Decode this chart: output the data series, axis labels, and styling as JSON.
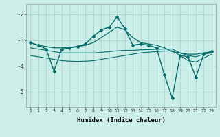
{
  "title": "",
  "xlabel": "Humidex (Indice chaleur)",
  "ylabel": "",
  "bg_color": "#cceee8",
  "grid_color": "#aad4cc",
  "line_color": "#006b6b",
  "xlim": [
    -0.5,
    23.5
  ],
  "ylim": [
    -5.6,
    -1.6
  ],
  "yticks": [
    -5,
    -4,
    -3,
    -2
  ],
  "xticks": [
    0,
    1,
    2,
    3,
    4,
    5,
    6,
    7,
    8,
    9,
    10,
    11,
    12,
    13,
    14,
    15,
    16,
    17,
    18,
    19,
    20,
    21,
    22,
    23
  ],
  "series": {
    "main": {
      "x": [
        0,
        1,
        2,
        3,
        4,
        5,
        6,
        7,
        8,
        9,
        10,
        11,
        12,
        13,
        14,
        15,
        16,
        17,
        18,
        19,
        20,
        21,
        22,
        23
      ],
      "y": [
        -3.1,
        -3.2,
        -3.35,
        -4.2,
        -3.35,
        -3.3,
        -3.25,
        -3.15,
        -2.85,
        -2.6,
        -2.5,
        -2.1,
        -2.55,
        -3.2,
        -3.15,
        -3.2,
        -3.3,
        -4.35,
        -5.25,
        -3.6,
        -3.65,
        -4.45,
        -3.55,
        -3.45
      ]
    },
    "upper_envelope": {
      "x": [
        0,
        1,
        2,
        3,
        4,
        5,
        6,
        7,
        8,
        9,
        10,
        11,
        12,
        13,
        14,
        15,
        16,
        17,
        18,
        19,
        20,
        21,
        22,
        23
      ],
      "y": [
        -3.1,
        -3.2,
        -3.25,
        -3.3,
        -3.3,
        -3.28,
        -3.25,
        -3.2,
        -3.1,
        -2.9,
        -2.7,
        -2.5,
        -2.6,
        -2.9,
        -3.1,
        -3.15,
        -3.2,
        -3.3,
        -3.45,
        -3.5,
        -3.55,
        -3.55,
        -3.5,
        -3.45
      ]
    },
    "mid_band": {
      "x": [
        0,
        1,
        2,
        3,
        4,
        5,
        6,
        7,
        8,
        9,
        10,
        11,
        12,
        13,
        14,
        15,
        16,
        17,
        18,
        19,
        20,
        21,
        22,
        23
      ],
      "y": [
        -3.3,
        -3.35,
        -3.4,
        -3.45,
        -3.5,
        -3.5,
        -3.5,
        -3.5,
        -3.5,
        -3.48,
        -3.45,
        -3.42,
        -3.4,
        -3.4,
        -3.38,
        -3.37,
        -3.36,
        -3.35,
        -3.35,
        -3.5,
        -3.6,
        -3.65,
        -3.55,
        -3.5
      ]
    },
    "lower_band": {
      "x": [
        0,
        1,
        2,
        3,
        4,
        5,
        6,
        7,
        8,
        9,
        10,
        11,
        12,
        13,
        14,
        15,
        16,
        17,
        18,
        19,
        20,
        21,
        22,
        23
      ],
      "y": [
        -3.6,
        -3.65,
        -3.7,
        -3.75,
        -3.8,
        -3.82,
        -3.83,
        -3.82,
        -3.8,
        -3.75,
        -3.7,
        -3.65,
        -3.6,
        -3.55,
        -3.5,
        -3.47,
        -3.45,
        -3.43,
        -3.42,
        -3.6,
        -3.8,
        -3.85,
        -3.7,
        -3.55
      ]
    }
  }
}
